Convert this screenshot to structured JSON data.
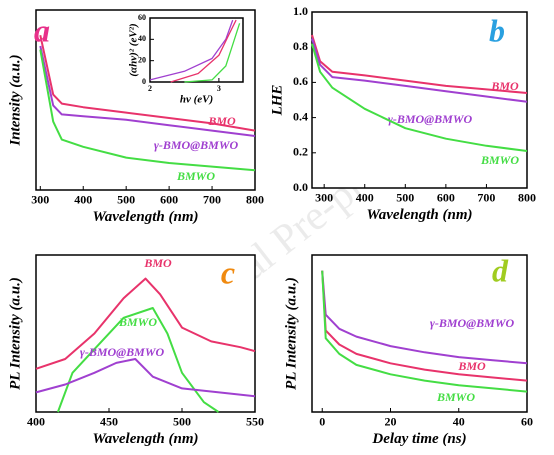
{
  "watermark": "Journal Pre-proof",
  "chart_data": [
    {
      "type": "line",
      "label": "a",
      "label_color": "#e8308a",
      "x_label": "Wavelength (nm)",
      "y_label": "Intensity (a.u.)",
      "xlim": [
        290,
        800
      ],
      "xticks": [
        300,
        400,
        500,
        600,
        700,
        800
      ],
      "ylim": [
        0,
        1
      ],
      "series": [
        {
          "name": "BMO",
          "color": "#e8336b",
          "x": [
            300,
            330,
            350,
            400,
            500,
            600,
            700,
            800
          ],
          "values": [
            0.86,
            0.53,
            0.48,
            0.46,
            0.43,
            0.4,
            0.37,
            0.33
          ]
        },
        {
          "name": "γ-BMO@BMWO",
          "color": "#a040d0",
          "x": [
            300,
            330,
            350,
            400,
            500,
            600,
            700,
            800
          ],
          "values": [
            0.8,
            0.47,
            0.42,
            0.41,
            0.39,
            0.36,
            0.33,
            0.3
          ]
        },
        {
          "name": "BMWO",
          "color": "#44dd44",
          "x": [
            300,
            330,
            350,
            400,
            500,
            600,
            700,
            800
          ],
          "values": [
            0.78,
            0.38,
            0.28,
            0.24,
            0.18,
            0.15,
            0.13,
            0.11
          ]
        }
      ],
      "inset": {
        "type": "line",
        "x_label": "hν (eV)",
        "y_label": "(αhν)² (eV²)",
        "xlim": [
          2,
          3.35
        ],
        "xticks": [
          2,
          3
        ],
        "ylim": [
          0,
          60
        ],
        "yticks": [
          0,
          20,
          40,
          60
        ],
        "series": [
          {
            "color": "#a040d0",
            "x": [
              2,
              2.5,
              2.9,
              3.1,
              3.2
            ],
            "values": [
              2,
              10,
              22,
              40,
              58
            ]
          },
          {
            "color": "#e8336b",
            "x": [
              2.3,
              2.7,
              3.0,
              3.15,
              3.25
            ],
            "values": [
              0,
              8,
              25,
              45,
              58
            ]
          },
          {
            "color": "#44dd44",
            "x": [
              2.5,
              2.9,
              3.1,
              3.2,
              3.3
            ],
            "values": [
              0,
              2,
              15,
              35,
              55
            ]
          }
        ]
      }
    },
    {
      "type": "line",
      "label": "b",
      "label_color": "#2aa0e0",
      "x_label": "Wavelength (nm)",
      "y_label": "LHE",
      "xlim": [
        270,
        800
      ],
      "xticks": [
        300,
        400,
        500,
        600,
        700,
        800
      ],
      "ylim": [
        0,
        1
      ],
      "yticks": [
        {
          "value": 0,
          "label": "0.0"
        },
        0.2,
        0.4,
        0.6,
        0.8,
        {
          "value": 1,
          "label": "1.0"
        }
      ],
      "series": [
        {
          "name": "BMO",
          "color": "#e8336b",
          "x": [
            270,
            290,
            320,
            400,
            500,
            600,
            700,
            800
          ],
          "values": [
            0.87,
            0.72,
            0.66,
            0.64,
            0.61,
            0.58,
            0.56,
            0.54
          ]
        },
        {
          "name": "γ-BMO@BMWO",
          "color": "#a040d0",
          "x": [
            270,
            290,
            320,
            400,
            500,
            600,
            700,
            800
          ],
          "values": [
            0.85,
            0.7,
            0.63,
            0.61,
            0.58,
            0.55,
            0.52,
            0.49
          ]
        },
        {
          "name": "BMWO",
          "color": "#44dd44",
          "x": [
            270,
            290,
            320,
            400,
            500,
            600,
            700,
            800
          ],
          "values": [
            0.82,
            0.66,
            0.57,
            0.45,
            0.34,
            0.28,
            0.24,
            0.21
          ]
        }
      ]
    },
    {
      "type": "line",
      "label": "c",
      "label_color": "#f08a10",
      "x_label": "Wavelength (nm)",
      "y_label": "PL Intensity (a.u.)",
      "xlim": [
        400,
        550
      ],
      "xticks": [
        400,
        450,
        500,
        550
      ],
      "ylim": [
        0,
        0.8
      ],
      "series": [
        {
          "name": "BMO",
          "color": "#e8336b",
          "x": [
            400,
            420,
            440,
            460,
            475,
            485,
            500,
            520,
            540,
            550
          ],
          "values": [
            0.22,
            0.27,
            0.4,
            0.58,
            0.68,
            0.6,
            0.43,
            0.36,
            0.33,
            0.31
          ]
        },
        {
          "name": "BMWO",
          "color": "#44dd44",
          "x": [
            415,
            425,
            440,
            460,
            480,
            490,
            500,
            515,
            525
          ],
          "values": [
            0,
            0.2,
            0.32,
            0.48,
            0.53,
            0.4,
            0.2,
            0.05,
            0
          ]
        },
        {
          "name": "γ-BMO@BMWO",
          "color": "#a040d0",
          "x": [
            400,
            420,
            440,
            455,
            468,
            480,
            500,
            550
          ],
          "values": [
            0.1,
            0.14,
            0.2,
            0.25,
            0.27,
            0.18,
            0.12,
            0.08
          ]
        }
      ]
    },
    {
      "type": "line",
      "label": "d",
      "label_color": "#a0cc20",
      "x_label": "Delay time (ns)",
      "y_label": "PL Intensity (a.u.)",
      "xlim": [
        -3,
        60
      ],
      "xticks": [
        0,
        20,
        40,
        60
      ],
      "ylim": [
        0,
        1
      ],
      "series": [
        {
          "name": "γ-BMO@BMWO",
          "color": "#a040d0",
          "x": [
            0,
            1,
            5,
            10,
            20,
            30,
            40,
            50,
            60
          ],
          "values": [
            0.9,
            0.62,
            0.53,
            0.48,
            0.42,
            0.38,
            0.35,
            0.33,
            0.31
          ]
        },
        {
          "name": "BMO",
          "color": "#e8336b",
          "x": [
            0,
            1,
            5,
            10,
            20,
            30,
            40,
            50,
            60
          ],
          "values": [
            0.9,
            0.52,
            0.43,
            0.37,
            0.31,
            0.27,
            0.24,
            0.22,
            0.2
          ]
        },
        {
          "name": "BMWO",
          "color": "#44dd44",
          "x": [
            0,
            1,
            5,
            10,
            20,
            30,
            40,
            50,
            60
          ],
          "values": [
            0.9,
            0.47,
            0.37,
            0.3,
            0.24,
            0.2,
            0.17,
            0.15,
            0.13
          ]
        }
      ]
    }
  ]
}
